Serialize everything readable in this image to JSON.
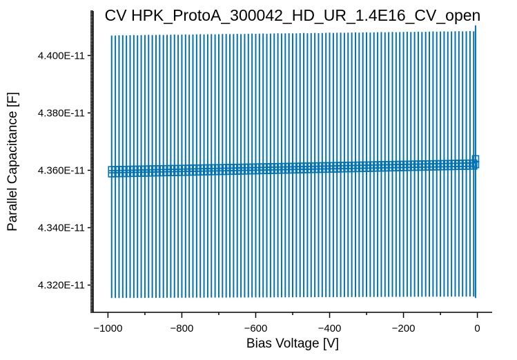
{
  "chart_data": {
    "type": "scatter",
    "title": "CV HPK_ProtoA_300042_HD_UR_1.4E16_CV_open",
    "xlabel": "Bias Voltage [V]",
    "ylabel": "Parallel Capacitance [F]",
    "xlim": [
      -1040,
      40
    ],
    "ylim": [
      4.3105e-11,
      4.4155e-11
    ],
    "x_ticks": [
      -1000,
      -800,
      -600,
      -400,
      -200,
      0
    ],
    "x_tick_labels": [
      "−1000",
      "−800",
      "−600",
      "−400",
      "−200",
      "0"
    ],
    "y_ticks": [
      4.32e-11,
      4.34e-11,
      4.36e-11,
      4.38e-11,
      4.4e-11
    ],
    "y_tick_labels": [
      "4.320E-11",
      "4.340E-11",
      "4.360E-11",
      "4.380E-11",
      "4.400E-11"
    ],
    "grid": false,
    "marker": "square-open",
    "color": "#0072b2",
    "series": [
      {
        "x_start": -990,
        "x_end": -10,
        "x_step": 10,
        "y_center_start": 4.3595e-11,
        "y_center_end": 4.362e-11,
        "y_box_half_start": 7e-15,
        "y_box_half_end": 5e-15,
        "err_low_start": 4.3155e-11,
        "err_low_end": 4.316e-11,
        "err_high_start": 4.407e-11,
        "err_high_end": 4.4085e-11
      }
    ],
    "extra_points": [
      {
        "x": -5,
        "y": 4.363e-11,
        "box_half": 1e-14,
        "err_low": 4.3155e-11,
        "err_high": 4.4105e-11
      }
    ]
  }
}
